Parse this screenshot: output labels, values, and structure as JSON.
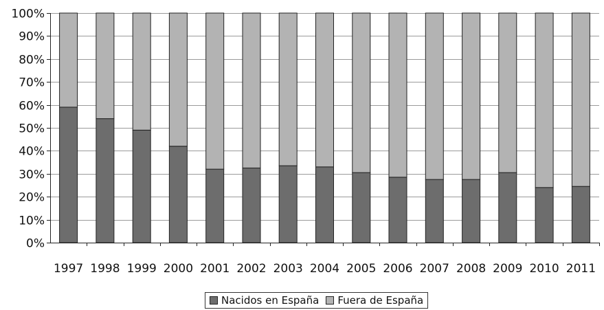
{
  "chart_data": {
    "type": "bar",
    "stacked": true,
    "percent": true,
    "categories": [
      "1997",
      "1998",
      "1999",
      "2000",
      "2001",
      "2002",
      "2003",
      "2004",
      "2005",
      "2006",
      "2007",
      "2008",
      "2009",
      "2010",
      "2011"
    ],
    "series": [
      {
        "name": "Nacidos en España",
        "color": "#6d6d6d",
        "values": [
          59,
          54,
          49,
          42,
          32,
          32.5,
          33.5,
          33,
          30.5,
          28.5,
          27.5,
          27.5,
          30.5,
          24,
          24.5
        ]
      },
      {
        "name": "Fuera de España",
        "color": "#b3b3b3",
        "values": [
          41,
          46,
          51,
          58,
          68,
          67.5,
          66.5,
          67,
          69.5,
          71.5,
          72.5,
          72.5,
          69.5,
          76,
          75.5
        ]
      }
    ],
    "y_ticks": [
      "0%",
      "10%",
      "20%",
      "30%",
      "40%",
      "50%",
      "60%",
      "70%",
      "80%",
      "90%",
      "100%"
    ],
    "ylim": [
      0,
      100
    ],
    "grid": true,
    "legend_position": "bottom"
  }
}
